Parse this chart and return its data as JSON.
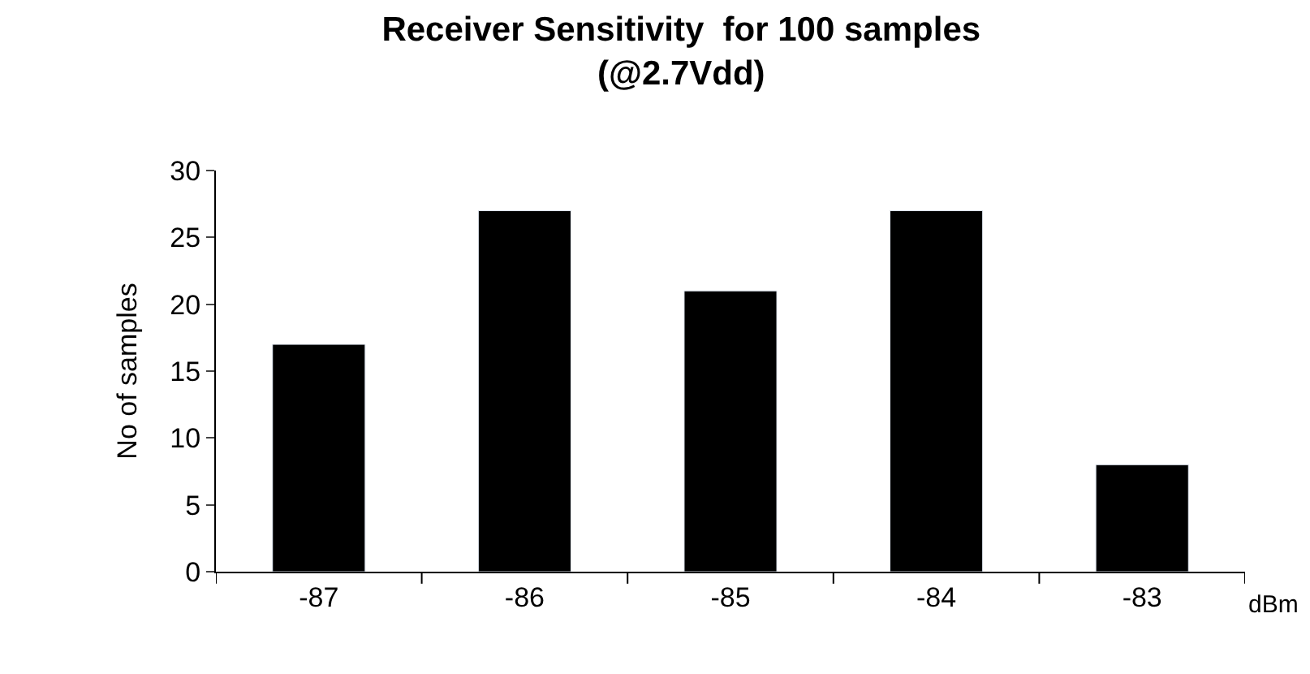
{
  "chart_data": {
    "type": "bar",
    "title": "Receiver Sensitivity  for 100 samples\n(@2.7Vdd)",
    "categories": [
      "-87",
      "-86",
      "-85",
      "-84",
      "-83"
    ],
    "values": [
      17,
      27,
      21,
      27,
      8
    ],
    "color": "#000000",
    "xlabel": "dBm",
    "ylabel": "No of samples",
    "ylim": [
      0,
      30
    ],
    "yticks": [
      0,
      5,
      10,
      15,
      20,
      25,
      30
    ]
  }
}
